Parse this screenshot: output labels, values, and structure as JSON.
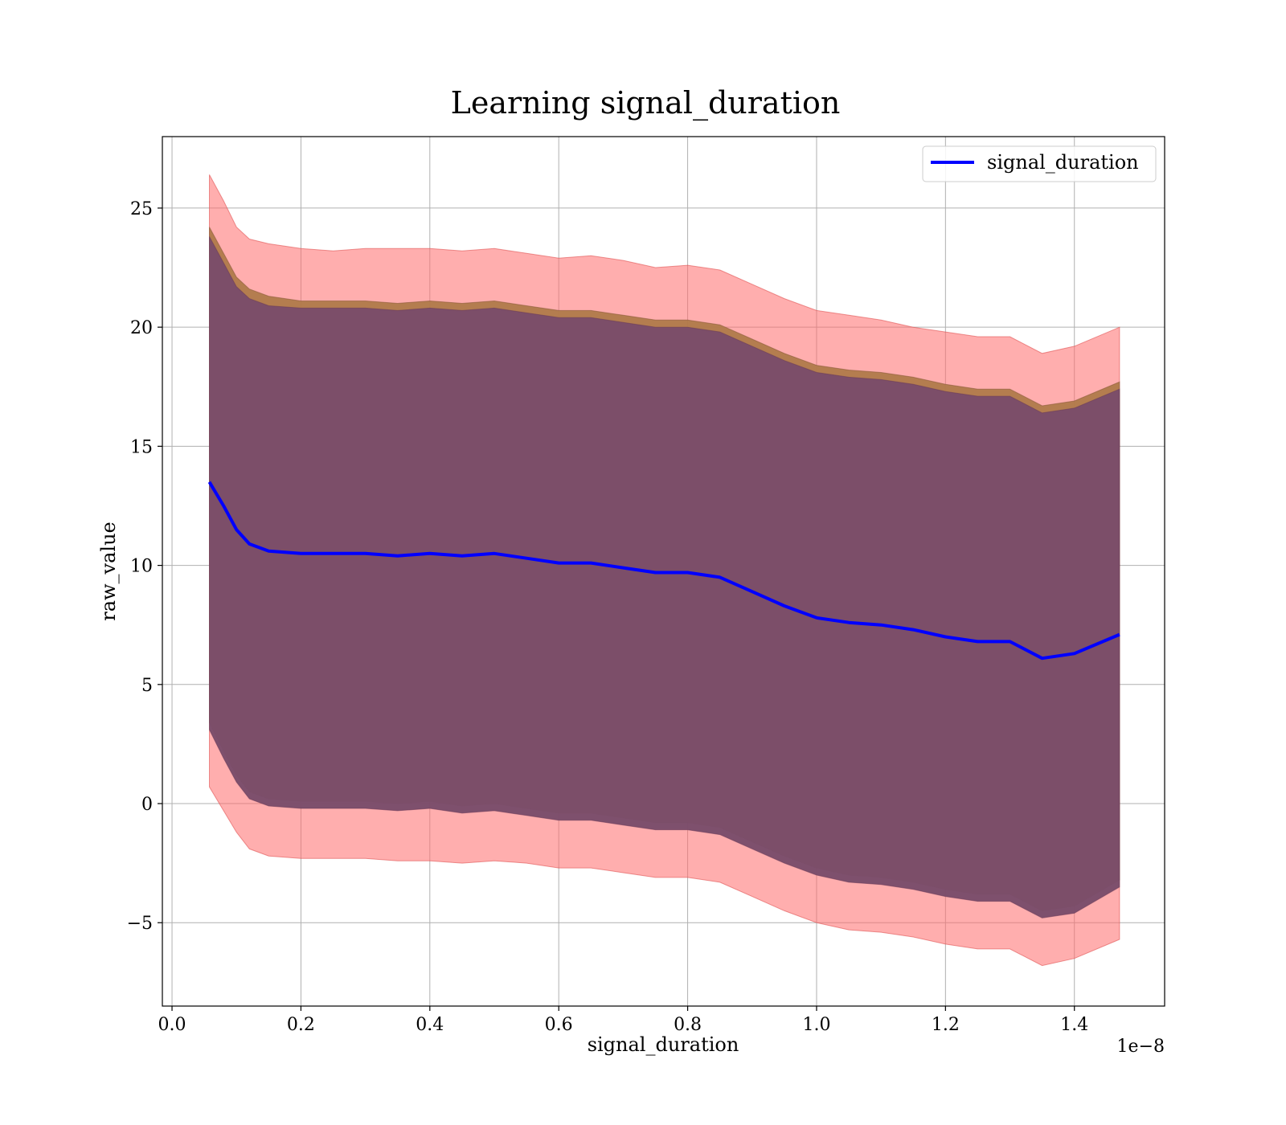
{
  "chart_data": {
    "type": "line",
    "title": "Learning signal_duration",
    "xlabel": "signal_duration",
    "ylabel": "raw_value",
    "x_offset_label": "1e−8",
    "xlim": [
      -0.015,
      1.54
    ],
    "ylim": [
      -8.5,
      28.0
    ],
    "x_ticks": [
      0.0,
      0.2,
      0.4,
      0.6,
      0.8,
      1.0,
      1.2,
      1.4
    ],
    "x_tick_labels": [
      "0.0",
      "0.2",
      "0.4",
      "0.6",
      "0.8",
      "1.0",
      "1.2",
      "1.4"
    ],
    "y_ticks": [
      -5,
      0,
      5,
      10,
      15,
      20,
      25
    ],
    "y_tick_labels": [
      "−5",
      "0",
      "5",
      "10",
      "15",
      "20",
      "25"
    ],
    "grid": true,
    "legend": {
      "position": "top-right",
      "entries": [
        "signal_duration"
      ]
    },
    "colors": {
      "line": "#0000ff",
      "band_outer": "#ff6b6b",
      "band_mid": "#b07a4a",
      "band_inner": "#7a4c6a"
    },
    "x": [
      0.058,
      0.08,
      0.1,
      0.12,
      0.15,
      0.2,
      0.25,
      0.3,
      0.35,
      0.4,
      0.45,
      0.5,
      0.55,
      0.6,
      0.65,
      0.7,
      0.75,
      0.8,
      0.85,
      0.9,
      0.95,
      1.0,
      1.05,
      1.1,
      1.15,
      1.2,
      1.25,
      1.3,
      1.35,
      1.4,
      1.47
    ],
    "series": [
      {
        "name": "signal_duration",
        "values": [
          13.5,
          12.5,
          11.5,
          10.9,
          10.6,
          10.5,
          10.5,
          10.5,
          10.4,
          10.5,
          10.4,
          10.5,
          10.3,
          10.1,
          10.1,
          9.9,
          9.7,
          9.7,
          9.5,
          8.9,
          8.3,
          7.8,
          7.6,
          7.5,
          7.3,
          7.0,
          6.8,
          6.8,
          6.1,
          6.3,
          7.1
        ]
      }
    ],
    "bands": [
      {
        "upper": [
          26.4,
          25.3,
          24.2,
          23.7,
          23.5,
          23.3,
          23.2,
          23.3,
          23.3,
          23.3,
          23.2,
          23.3,
          23.1,
          22.9,
          23.0,
          22.8,
          22.5,
          22.6,
          22.4,
          21.8,
          21.2,
          20.7,
          20.5,
          20.3,
          20.0,
          19.8,
          19.6,
          19.6,
          18.9,
          19.2,
          20.0
        ],
        "lower": [
          0.7,
          -0.3,
          -1.2,
          -1.9,
          -2.2,
          -2.3,
          -2.3,
          -2.3,
          -2.4,
          -2.4,
          -2.5,
          -2.4,
          -2.5,
          -2.7,
          -2.7,
          -2.9,
          -3.1,
          -3.1,
          -3.3,
          -3.9,
          -4.5,
          -5.0,
          -5.3,
          -5.4,
          -5.6,
          -5.9,
          -6.1,
          -6.1,
          -6.8,
          -6.5,
          -5.7
        ]
      },
      {
        "upper": [
          24.2,
          23.1,
          22.1,
          21.6,
          21.3,
          21.1,
          21.1,
          21.1,
          21.0,
          21.1,
          21.0,
          21.1,
          20.9,
          20.7,
          20.7,
          20.5,
          20.3,
          20.3,
          20.1,
          19.5,
          18.9,
          18.4,
          18.2,
          18.1,
          17.9,
          17.6,
          17.4,
          17.4,
          16.7,
          16.9,
          17.7
        ],
        "lower": [
          3.4,
          2.2,
          1.2,
          0.5,
          0.2,
          0.1,
          0.1,
          0.1,
          0.0,
          0.1,
          -0.1,
          0.0,
          -0.2,
          -0.4,
          -0.4,
          -0.6,
          -0.8,
          -0.8,
          -1.0,
          -1.6,
          -2.2,
          -2.7,
          -3.0,
          -3.1,
          -3.3,
          -3.6,
          -3.8,
          -3.8,
          -4.5,
          -4.3,
          -3.2
        ]
      },
      {
        "upper": [
          23.8,
          22.7,
          21.7,
          21.2,
          20.9,
          20.8,
          20.8,
          20.8,
          20.7,
          20.8,
          20.7,
          20.8,
          20.6,
          20.4,
          20.4,
          20.2,
          20.0,
          20.0,
          19.8,
          19.2,
          18.6,
          18.1,
          17.9,
          17.8,
          17.6,
          17.3,
          17.1,
          17.1,
          16.4,
          16.6,
          17.4
        ],
        "lower": [
          3.1,
          1.9,
          0.9,
          0.2,
          -0.1,
          -0.2,
          -0.2,
          -0.2,
          -0.3,
          -0.2,
          -0.4,
          -0.3,
          -0.5,
          -0.7,
          -0.7,
          -0.9,
          -1.1,
          -1.1,
          -1.3,
          -1.9,
          -2.5,
          -3.0,
          -3.3,
          -3.4,
          -3.6,
          -3.9,
          -4.1,
          -4.1,
          -4.8,
          -4.6,
          -3.5
        ]
      }
    ]
  }
}
